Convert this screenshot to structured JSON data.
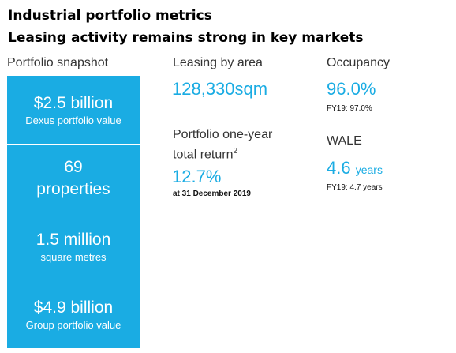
{
  "header": {
    "title": "Industrial portfolio metrics",
    "subtitle": "Leasing activity remains strong in key markets"
  },
  "snapshot": {
    "label": "Portfolio snapshot",
    "tiles": [
      {
        "big": "$2.5 billion",
        "small": "Dexus portfolio value"
      },
      {
        "big": "69",
        "big2": "properties"
      },
      {
        "big": "1.5 million",
        "small": "square metres"
      },
      {
        "big": "$4.9 billion",
        "small": "Group portfolio value"
      }
    ]
  },
  "leasing": {
    "label": "Leasing by area",
    "value": "128,330sqm"
  },
  "occupancy": {
    "label": "Occupancy",
    "value": "96.0%",
    "sub": "FY19: 97.0%"
  },
  "return": {
    "label_line1": "Portfolio one-year",
    "label_line2": "total return",
    "sup": "2",
    "value": "12.7%",
    "sub": "at 31 December 2019"
  },
  "wale": {
    "label": "WALE",
    "value": "4.6",
    "unit": "years",
    "sub": "FY19: 4.7 years"
  }
}
